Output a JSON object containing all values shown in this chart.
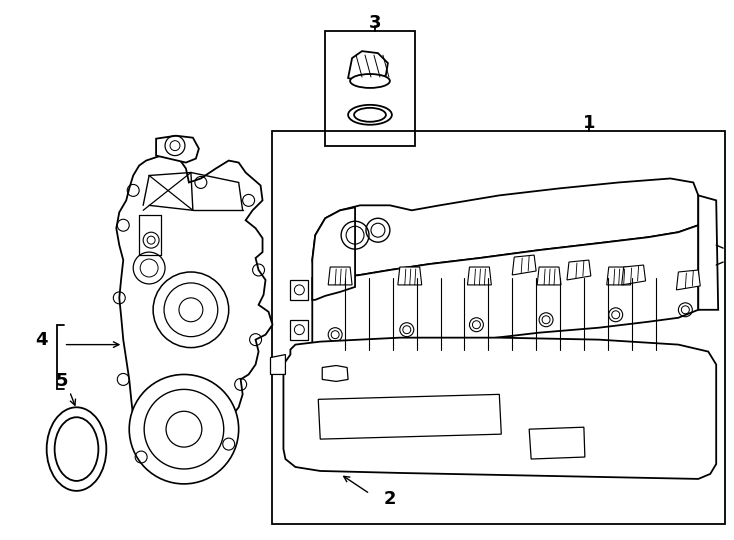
{
  "background_color": "#ffffff",
  "line_color": "#000000",
  "lw": 1.3,
  "fig_width": 7.34,
  "fig_height": 5.4,
  "dpi": 100
}
